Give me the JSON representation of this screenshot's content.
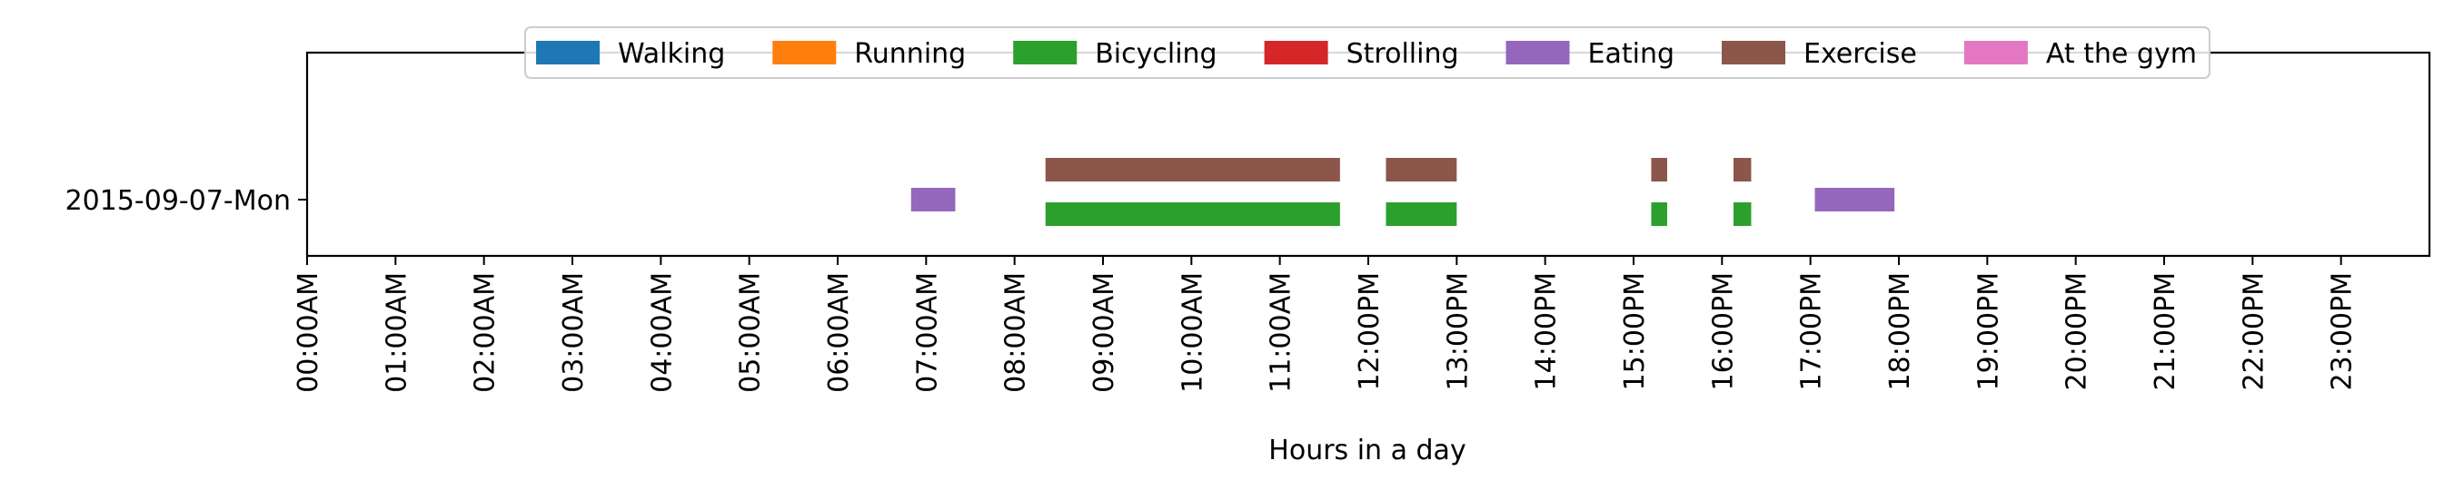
{
  "chart_data": {
    "type": "timeline",
    "title": "",
    "xlabel": "Hours in a day",
    "ylabel": "",
    "xlim": [
      0,
      24
    ],
    "x_ticks": [
      {
        "value": 0,
        "label": "00:00AM"
      },
      {
        "value": 1,
        "label": "01:00AM"
      },
      {
        "value": 2,
        "label": "02:00AM"
      },
      {
        "value": 3,
        "label": "03:00AM"
      },
      {
        "value": 4,
        "label": "04:00AM"
      },
      {
        "value": 5,
        "label": "05:00AM"
      },
      {
        "value": 6,
        "label": "06:00AM"
      },
      {
        "value": 7,
        "label": "07:00AM"
      },
      {
        "value": 8,
        "label": "08:00AM"
      },
      {
        "value": 9,
        "label": "09:00AM"
      },
      {
        "value": 10,
        "label": "10:00AM"
      },
      {
        "value": 11,
        "label": "11:00AM"
      },
      {
        "value": 12,
        "label": "12:00PM"
      },
      {
        "value": 13,
        "label": "13:00PM"
      },
      {
        "value": 14,
        "label": "14:00PM"
      },
      {
        "value": 15,
        "label": "15:00PM"
      },
      {
        "value": 16,
        "label": "16:00PM"
      },
      {
        "value": 17,
        "label": "17:00PM"
      },
      {
        "value": 18,
        "label": "18:00PM"
      },
      {
        "value": 19,
        "label": "19:00PM"
      },
      {
        "value": 20,
        "label": "20:00PM"
      },
      {
        "value": 21,
        "label": "21:00PM"
      },
      {
        "value": 22,
        "label": "22:00PM"
      },
      {
        "value": 23,
        "label": "23:00PM"
      }
    ],
    "y_categories": [
      "2015-09-07-Mon"
    ],
    "grid": false,
    "legend": {
      "placement": "top-center",
      "entries": [
        {
          "name": "Walking",
          "color": "#1f77b4"
        },
        {
          "name": "Running",
          "color": "#ff7f0e"
        },
        {
          "name": "Bicycling",
          "color": "#2ca02c"
        },
        {
          "name": "Strolling",
          "color": "#d62728"
        },
        {
          "name": "Eating",
          "color": "#9467bd"
        },
        {
          "name": "Exercise",
          "color": "#8c564b"
        },
        {
          "name": "At the gym",
          "color": "#e377c2"
        }
      ]
    },
    "series": [
      {
        "name": "Eating",
        "color": "#9467bd",
        "row": "2015-09-07-Mon",
        "lane": "middle",
        "intervals": [
          [
            6.83,
            7.33
          ],
          [
            17.05,
            17.95
          ]
        ]
      },
      {
        "name": "Exercise",
        "color": "#8c564b",
        "row": "2015-09-07-Mon",
        "lane": "upper",
        "intervals": [
          [
            8.35,
            11.68
          ],
          [
            12.2,
            13.0
          ],
          [
            15.2,
            15.38
          ],
          [
            16.13,
            16.33
          ]
        ]
      },
      {
        "name": "Bicycling",
        "color": "#2ca02c",
        "row": "2015-09-07-Mon",
        "lane": "lower",
        "intervals": [
          [
            8.35,
            11.68
          ],
          [
            12.2,
            13.0
          ],
          [
            15.2,
            15.38
          ],
          [
            16.13,
            16.33
          ]
        ]
      }
    ]
  }
}
